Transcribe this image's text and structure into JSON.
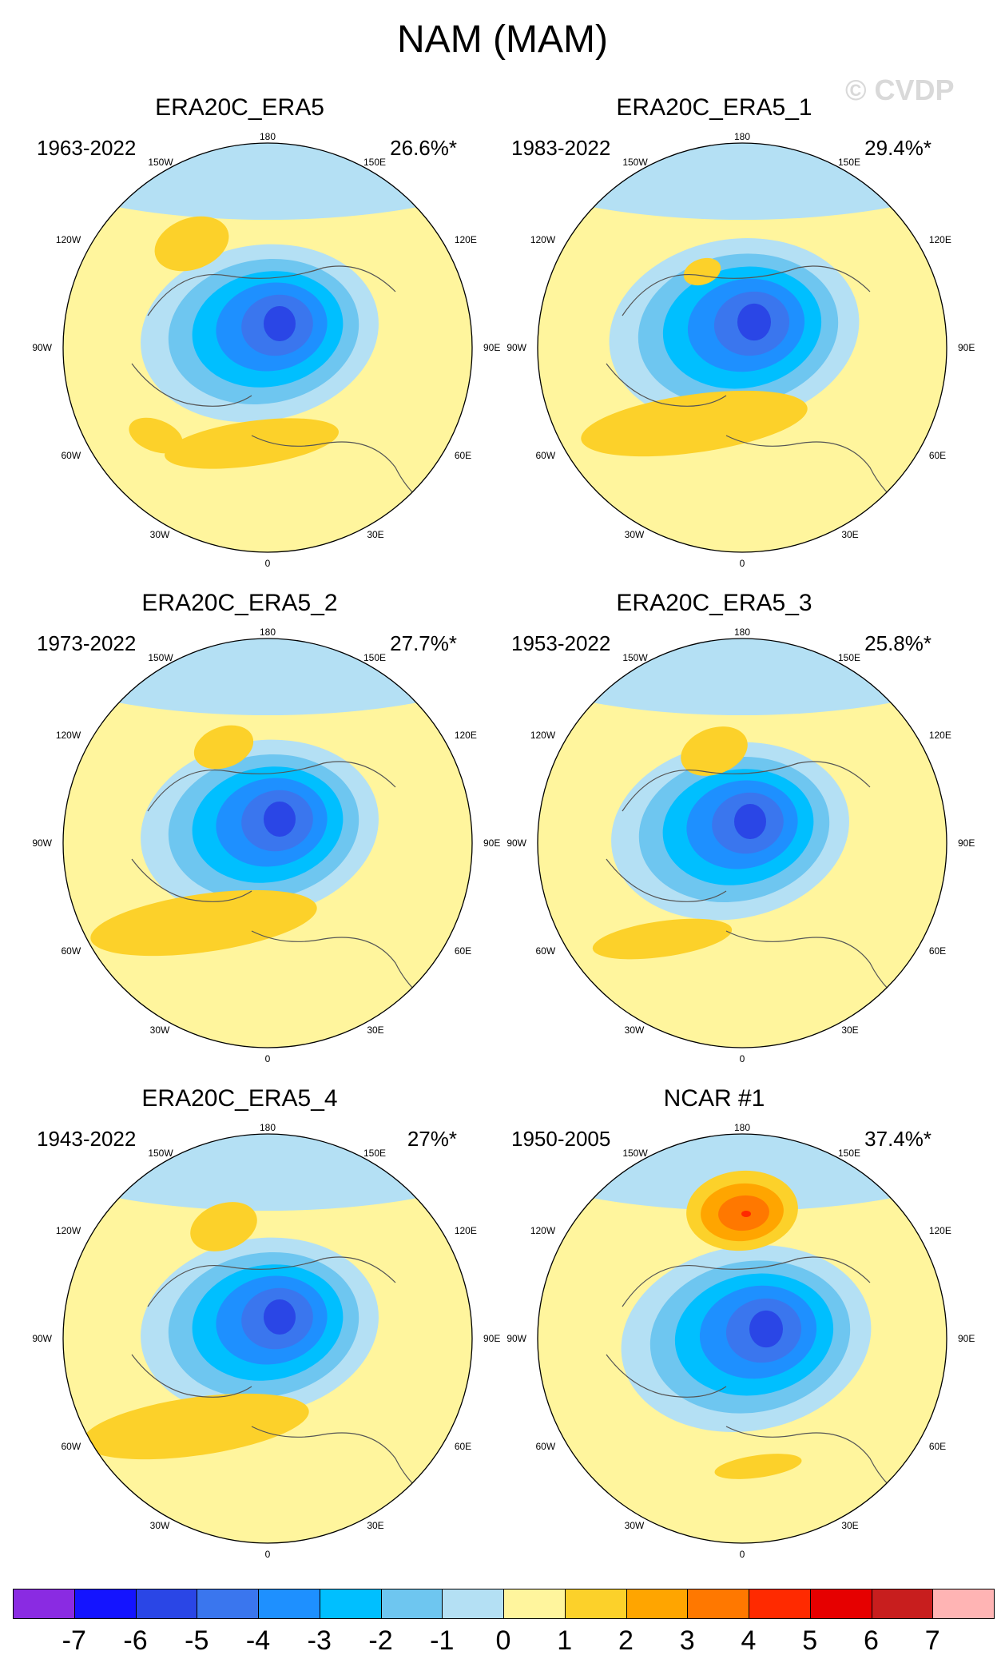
{
  "title": "NAM (MAM)",
  "watermark": "© CVDP",
  "longitude_labels": {
    "top": "180",
    "bottom": "0",
    "upper_left": "150W",
    "upper_right": "150E",
    "mid_left_upper": "120W",
    "mid_right_upper": "120E",
    "left": "90W",
    "right": "90E",
    "mid_left_lower": "60W",
    "mid_right_lower": "60E",
    "lower_left": "30W",
    "lower_right": "30E"
  },
  "panels": [
    {
      "title": "ERA20C_ERA5",
      "years": "1963-2022",
      "variance": "26.6%*"
    },
    {
      "title": "ERA20C_ERA5_1",
      "years": "1983-2022",
      "variance": "29.4%*"
    },
    {
      "title": "ERA20C_ERA5_2",
      "years": "1973-2022",
      "variance": "27.7%*"
    },
    {
      "title": "ERA20C_ERA5_3",
      "years": "1953-2022",
      "variance": "25.8%*"
    },
    {
      "title": "ERA20C_ERA5_4",
      "years": "1943-2022",
      "variance": "27%*"
    },
    {
      "title": "NCAR #1",
      "years": "1950-2005",
      "variance": "37.4%*"
    }
  ],
  "colorbar": {
    "labels": [
      "-7",
      "-6",
      "-5",
      "-4",
      "-3",
      "-2",
      "-1",
      "0",
      "1",
      "2",
      "3",
      "4",
      "5",
      "6",
      "7"
    ],
    "colors": [
      "#8a2be2",
      "#1414ff",
      "#2a46e6",
      "#3a76ee",
      "#1e90ff",
      "#00bfff",
      "#6ec6f0",
      "#b4e0f4",
      "#fff59d",
      "#fcd12a",
      "#ffa500",
      "#ff7800",
      "#ff2a00",
      "#e60000",
      "#c81e1e",
      "#ffb4b4"
    ]
  },
  "anomaly_colors": {
    "ocean_background": "#fff59d",
    "neg1": "#b4e0f4",
    "neg2": "#6ec6f0",
    "neg3": "#00bfff",
    "neg4": "#1e90ff",
    "neg5": "#3a76ee",
    "neg6": "#2a46e6",
    "pos1": "#fcd12a",
    "pos2": "#ffa500",
    "pos3": "#ff7800",
    "pos4": "#ff2a00"
  }
}
